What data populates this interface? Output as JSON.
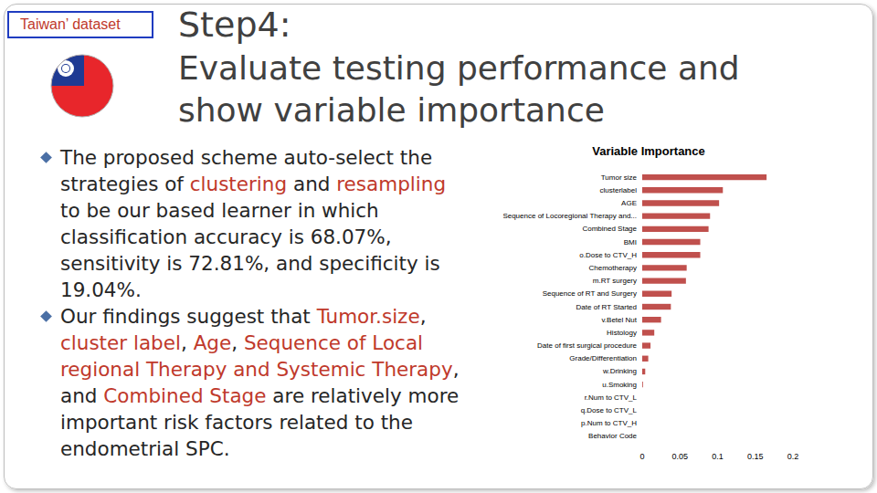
{
  "slide": {
    "tag": "Taiwan’ dataset",
    "heading": [
      "Step4:",
      "Evaluate testing performance and",
      "show variable importance"
    ],
    "bullets": [
      [
        {
          "text": "The proposed scheme auto-select the strategies of "
        },
        {
          "text": "clustering",
          "emphasis": true
        },
        {
          "text": " and "
        },
        {
          "text": "resampling",
          "emphasis": true
        },
        {
          "text": " to be our based learner in which classification accuracy is 68.07%, sensitivity is 72.81%, and specificity is 19.04%."
        }
      ],
      [
        {
          "text": "Our findings suggest that "
        },
        {
          "text": "Tumor.size",
          "emphasis": true
        },
        {
          "text": ", "
        },
        {
          "text": "cluster label",
          "emphasis": true
        },
        {
          "text": ", "
        },
        {
          "text": "Age",
          "emphasis": true
        },
        {
          "text": ", "
        },
        {
          "text": "Sequence of Local regional Therapy and Systemic Therapy",
          "emphasis": true
        },
        {
          "text": ", and "
        },
        {
          "text": "Combined Stage",
          "emphasis": true
        },
        {
          "text": " are relatively more important risk factors related to the endometrial SPC."
        }
      ]
    ]
  },
  "chart_data": {
    "type": "bar",
    "orientation": "horizontal",
    "title": "Variable Importance",
    "categories": [
      "Tumor size",
      "clusterlabel",
      "AGE",
      "Sequence of Locoregional Therapy and...",
      "Combined Stage",
      "BMI",
      "o.Dose to CTV_H",
      "Chemotherapy",
      "m.RT surgery",
      "Sequence of RT and Surgery",
      "Date of RT Started",
      "v.Betel Nut",
      "Histology",
      "Date of first surgical procedure",
      "Grade/Differentiation",
      "w.Drinking",
      "u.Smoking",
      "r.Num to CTV_L",
      "q.Dose to CTV_L",
      "p.Num to CTV_H",
      "Behavior Code"
    ],
    "values": [
      0.165,
      0.107,
      0.102,
      0.09,
      0.088,
      0.077,
      0.077,
      0.059,
      0.058,
      0.039,
      0.038,
      0.025,
      0.016,
      0.011,
      0.008,
      0.004,
      0.001,
      0,
      0,
      0,
      0
    ],
    "color": "#c0504d",
    "xlim": [
      0,
      0.2
    ],
    "xticks": [
      0,
      0.05,
      0.1,
      0.15,
      0.2
    ],
    "grid": false
  }
}
